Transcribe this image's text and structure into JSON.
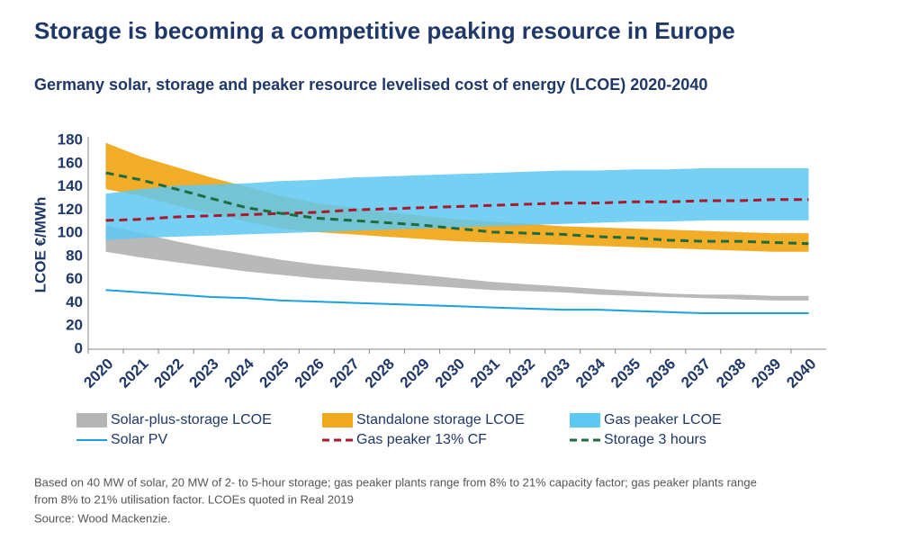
{
  "chart_data": {
    "type": "range-line",
    "title": "Storage is becoming a competitive peaking resource in Europe",
    "subtitle": "Germany solar, storage and peaker resource levelised cost of energy (LCOE) 2020-2040",
    "y_label": "LCOE €/MWh",
    "categories": [
      "2020",
      "2021",
      "2022",
      "2023",
      "2024",
      "2025",
      "2026",
      "2027",
      "2028",
      "2029",
      "2030",
      "2031",
      "2032",
      "2033",
      "2034",
      "2035",
      "2036",
      "2037",
      "2038",
      "2039",
      "2040"
    ],
    "ylim": [
      0,
      180
    ],
    "yticks": [
      0,
      20,
      40,
      60,
      80,
      100,
      120,
      140,
      160,
      180
    ],
    "series": [
      {
        "name": "Standalone storage LCOE",
        "kind": "band",
        "color": "#f0a81c",
        "low": [
          138,
          132,
          124,
          117,
          110,
          104,
          101,
          99,
          97,
          95,
          93,
          92,
          91,
          90,
          89,
          88,
          87,
          86,
          85,
          84,
          84
        ],
        "high": [
          178,
          166,
          157,
          148,
          140,
          132,
          126,
          122,
          118,
          115,
          112,
          110,
          108,
          106,
          105,
          104,
          103,
          102,
          101,
          100,
          100
        ]
      },
      {
        "name": "Solar-plus-storage LCOE",
        "kind": "band",
        "color": "#b5b5b5",
        "low": [
          84,
          79,
          75,
          71,
          67,
          64,
          61,
          59,
          57,
          55,
          53,
          51,
          50,
          49,
          47,
          46,
          45,
          44,
          43,
          42,
          42
        ],
        "high": [
          107,
          100,
          93,
          87,
          82,
          77,
          73,
          70,
          67,
          64,
          61,
          58,
          56,
          54,
          52,
          50,
          48,
          47,
          47,
          46,
          46
        ]
      },
      {
        "name": "Gas peaker LCOE",
        "kind": "band",
        "color": "#5ec8f2",
        "low": [
          94,
          96,
          97,
          98,
          99,
          100,
          101,
          102,
          103,
          104,
          105,
          106,
          107,
          108,
          109,
          110,
          110,
          111,
          111,
          111,
          111
        ],
        "high": [
          134,
          138,
          141,
          142,
          143,
          145,
          146,
          148,
          149,
          150,
          151,
          152,
          153,
          154,
          154,
          155,
          155,
          156,
          156,
          156,
          156
        ]
      },
      {
        "name": "Solar PV",
        "kind": "line",
        "color": "#1ba1e2",
        "dashed": false,
        "values": [
          51,
          49,
          47,
          45,
          44,
          42,
          41,
          40,
          39,
          38,
          37,
          36,
          35,
          34,
          34,
          33,
          32,
          31,
          31,
          31,
          31
        ]
      },
      {
        "name": "Gas peaker 13% CF",
        "kind": "line",
        "color": "#a6192e",
        "dashed": true,
        "values": [
          111,
          112,
          114,
          115,
          116,
          117,
          118,
          120,
          121,
          122,
          123,
          124,
          125,
          126,
          126,
          127,
          127,
          128,
          128,
          129,
          129
        ]
      },
      {
        "name": "Storage 3 hours",
        "kind": "line",
        "color": "#1e6b3f",
        "dashed": true,
        "values": [
          152,
          146,
          138,
          130,
          122,
          117,
          113,
          111,
          109,
          107,
          104,
          101,
          100,
          99,
          97,
          96,
          94,
          93,
          93,
          92,
          91
        ]
      }
    ],
    "legend_order": [
      1,
      0,
      2,
      3,
      4,
      5
    ],
    "notes": [
      "Based on 40 MW of solar, 20 MW of 2- to 5-hour storage; gas peaker plants range from 8% to 21% capacity factor; gas peaker plants range",
      "from 8% to 21% utilisation factor. LCOEs quoted in Real 2019"
    ],
    "source": "Source: Wood Mackenzie."
  }
}
